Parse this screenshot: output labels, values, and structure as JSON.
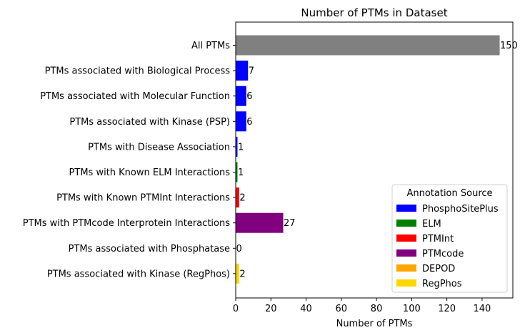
{
  "chart_data": {
    "type": "bar",
    "orientation": "horizontal",
    "title": "Number of PTMs in Dataset",
    "xlabel": "Number of PTMs",
    "ylabel": "",
    "xlim": [
      0,
      157.5
    ],
    "xticks": [
      0,
      20,
      40,
      60,
      80,
      100,
      120,
      140
    ],
    "grid": false,
    "categories": [
      "All PTMs",
      "PTMs associated with Biological Process",
      "PTMs associated with Molecular Function",
      "PTMs associated with Kinase (PSP)",
      "PTMs with Disease Association",
      "PTMs with Known ELM Interactions",
      "PTMs with Known PTMInt Interactions",
      "PTMs with PTMcode Interprotein Interactions",
      "PTMs associated with Phosphatase",
      "PTMs associated with Kinase (RegPhos)"
    ],
    "values": [
      150,
      7,
      6,
      6,
      1,
      1,
      2,
      27,
      0,
      2
    ],
    "value_labels": [
      "150",
      "7",
      "6",
      "6",
      "1",
      "1",
      "2",
      "27",
      "0",
      "2"
    ],
    "bar_colors": [
      "#808080",
      "#0000ff",
      "#0000ff",
      "#0000ff",
      "#0000ff",
      "#008000",
      "#ff0000",
      "#800080",
      "#ffa500",
      "#ffd700"
    ],
    "legend": {
      "title": "Annotation Source",
      "placement": "lower-right",
      "entries": [
        {
          "label": "PhosphoSitePlus",
          "color": "#0000ff"
        },
        {
          "label": "ELM",
          "color": "#008000"
        },
        {
          "label": "PTMInt",
          "color": "#ff0000"
        },
        {
          "label": "PTMcode",
          "color": "#800080"
        },
        {
          "label": "DEPOD",
          "color": "#ffa500"
        },
        {
          "label": "RegPhos",
          "color": "#ffd700"
        }
      ]
    }
  }
}
